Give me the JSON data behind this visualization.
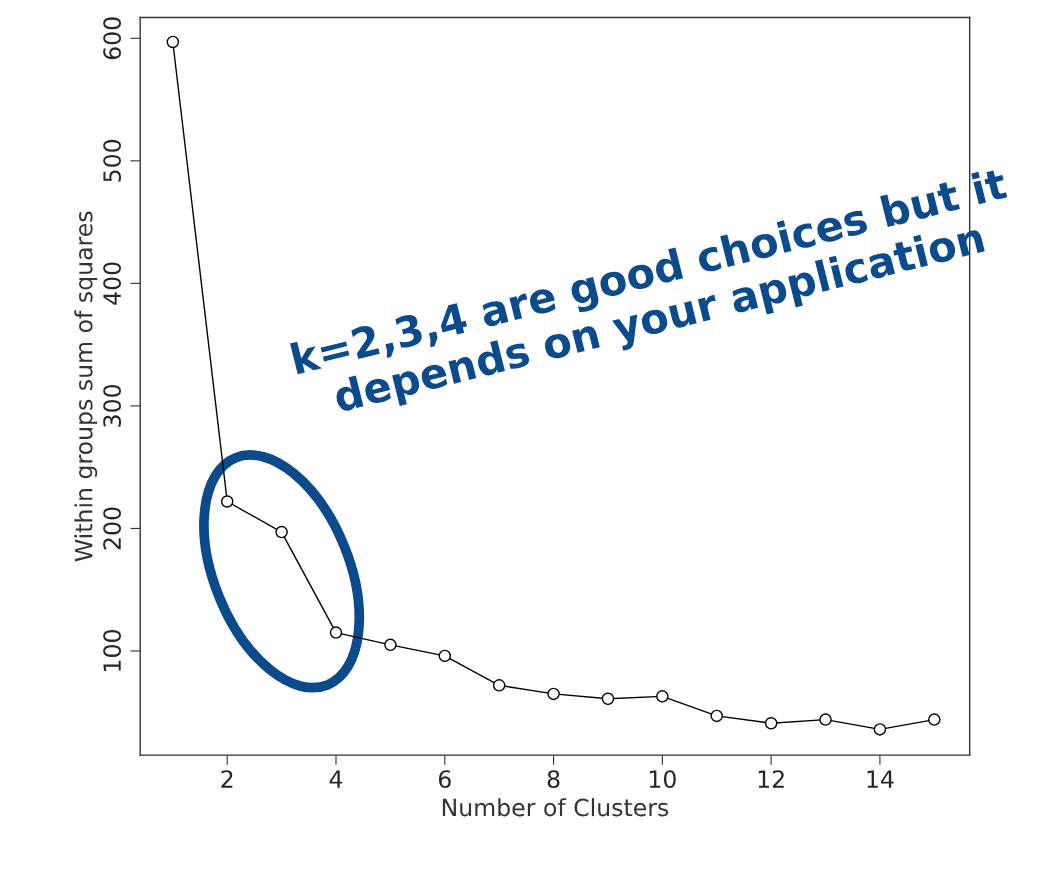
{
  "chart_data": {
    "type": "line",
    "xlabel": "Number of Clusters",
    "ylabel": "Within groups sum of squares",
    "x": [
      1,
      2,
      3,
      4,
      5,
      6,
      7,
      8,
      9,
      10,
      11,
      12,
      13,
      14,
      15
    ],
    "series": [
      {
        "color": "#000000",
        "values": [
          597,
          222,
          197,
          115,
          105,
          96,
          72,
          65,
          61,
          63,
          47,
          41,
          44,
          36,
          44
        ]
      }
    ],
    "xlim": [
      0.4,
      15.65
    ],
    "ylim": [
      15,
      617
    ],
    "xticks": [
      2,
      4,
      6,
      8,
      10,
      12,
      14
    ],
    "yticks": [
      100,
      200,
      300,
      400,
      500,
      600
    ],
    "marker": "circle",
    "line_style": "solid",
    "grid": false,
    "annotations": [
      "k=2,3,4 are good choices but it depends on your application"
    ]
  }
}
